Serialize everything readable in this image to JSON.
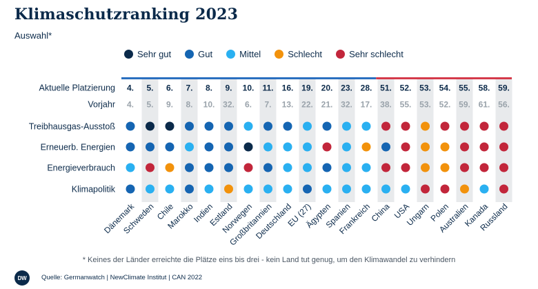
{
  "title": "Klimaschutzranking 2023",
  "subtitle": "Auswahl*",
  "legend": [
    {
      "label": "Sehr gut",
      "color": "#0b2a4a"
    },
    {
      "label": "Gut",
      "color": "#1565b2"
    },
    {
      "label": "Mittel",
      "color": "#2ab0f1"
    },
    {
      "label": "Schlecht",
      "color": "#f2920c"
    },
    {
      "label": "Sehr schlecht",
      "color": "#c2263b"
    }
  ],
  "colors": {
    "ratings": {
      "Sehr gut": "#0b2a4a",
      "Gut": "#1565b2",
      "Mittel": "#2ab0f1",
      "Schlecht": "#f2920c",
      "Sehr schlecht": "#c2263b"
    },
    "band_good": "#2a6fbf",
    "band_bad": "#d43a4a",
    "stripe": "#e8eaec",
    "current_rank": "#0b2a4a",
    "previous_rank": "#9aa3ab"
  },
  "chart_data": {
    "type": "table",
    "countries": [
      "Dänemark",
      "Schweden",
      "Chile",
      "Marokko",
      "Indien",
      "Estland",
      "Norwegen",
      "Großbritannien",
      "Deutschland",
      "EU (27)",
      "Ägypten",
      "Spanien",
      "Frankreich",
      "China",
      "USA",
      "Ungarn",
      "Polen",
      "Australien",
      "Kanada",
      "Russland"
    ],
    "row_labels": [
      "Aktuelle Platzierung",
      "Vorjahr",
      "Treibhausgas-Ausstoß",
      "Erneuerb. Energien",
      "Energieverbrauch",
      "Klimapolitik"
    ],
    "current_rank": [
      "4.",
      "5.",
      "6.",
      "7.",
      "8.",
      "9.",
      "10.",
      "11.",
      "16.",
      "19.",
      "20.",
      "23.",
      "28.",
      "51.",
      "52.",
      "53.",
      "54.",
      "55.",
      "58.",
      "59."
    ],
    "previous_rank": [
      "4.",
      "5.",
      "9.",
      "8.",
      "10.",
      "32.",
      "6.",
      "7.",
      "13.",
      "22.",
      "21.",
      "32.",
      "17.",
      "38.",
      "55.",
      "53.",
      "52.",
      "59.",
      "61.",
      "56."
    ],
    "band_split_after_country": "Frankreich",
    "ratings": {
      "Treibhausgas-Ausstoß": [
        "Gut",
        "Sehr gut",
        "Sehr gut",
        "Gut",
        "Gut",
        "Gut",
        "Mittel",
        "Gut",
        "Gut",
        "Mittel",
        "Gut",
        "Mittel",
        "Mittel",
        "Sehr schlecht",
        "Sehr schlecht",
        "Schlecht",
        "Sehr schlecht",
        "Sehr schlecht",
        "Sehr schlecht",
        "Sehr schlecht"
      ],
      "Erneuerb. Energien": [
        "Gut",
        "Gut",
        "Gut",
        "Mittel",
        "Gut",
        "Gut",
        "Sehr gut",
        "Mittel",
        "Mittel",
        "Mittel",
        "Sehr schlecht",
        "Mittel",
        "Schlecht",
        "Gut",
        "Sehr schlecht",
        "Schlecht",
        "Schlecht",
        "Sehr schlecht",
        "Sehr schlecht",
        "Sehr schlecht"
      ],
      "Energieverbrauch": [
        "Mittel",
        "Sehr schlecht",
        "Schlecht",
        "Gut",
        "Gut",
        "Gut",
        "Sehr schlecht",
        "Gut",
        "Mittel",
        "Mittel",
        "Gut",
        "Mittel",
        "Mittel",
        "Sehr schlecht",
        "Sehr schlecht",
        "Schlecht",
        "Schlecht",
        "Sehr schlecht",
        "Sehr schlecht",
        "Sehr schlecht"
      ],
      "Klimapolitik": [
        "Gut",
        "Mittel",
        "Mittel",
        "Gut",
        "Mittel",
        "Schlecht",
        "Mittel",
        "Mittel",
        "Mittel",
        "Gut",
        "Mittel",
        "Mittel",
        "Mittel",
        "Mittel",
        "Mittel",
        "Sehr schlecht",
        "Sehr schlecht",
        "Schlecht",
        "Mittel",
        "Sehr schlecht"
      ]
    }
  },
  "footnote": "* Keines der Länder erreichte die Plätze eins bis drei - kein Land tut genug, um den Klimawandel zu verhindern",
  "logo_text": "DW",
  "source": "Quelle: Germanwatch | NewClimate Institut | CAN 2022"
}
